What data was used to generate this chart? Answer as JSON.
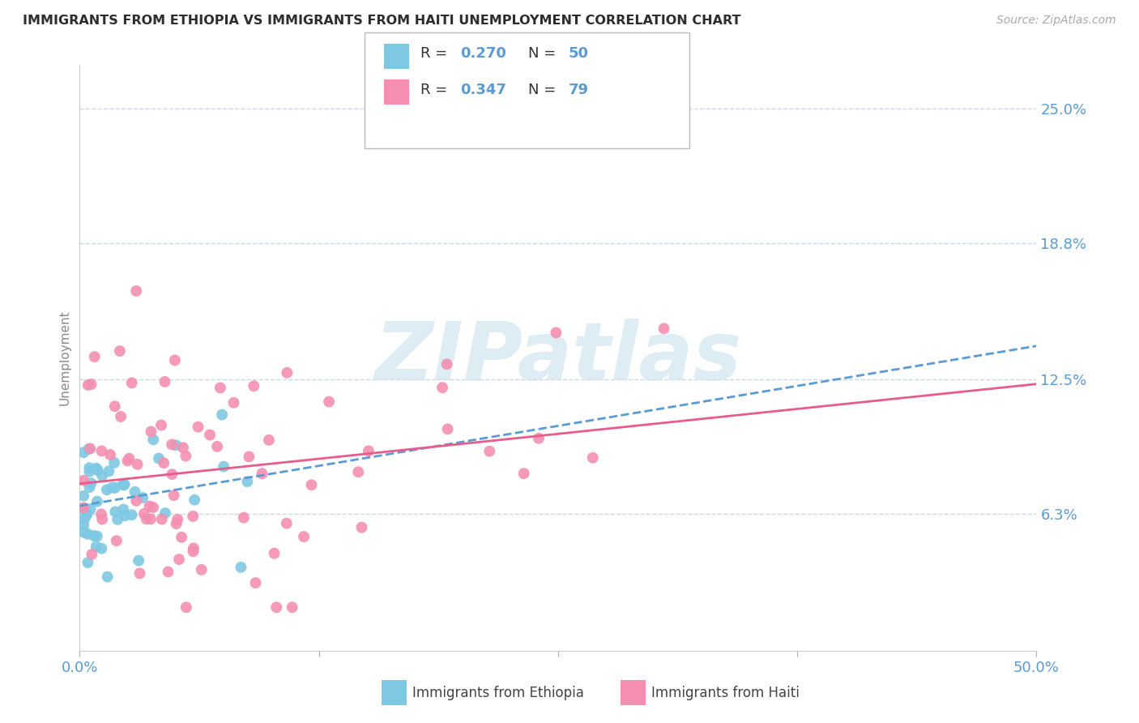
{
  "title": "IMMIGRANTS FROM ETHIOPIA VS IMMIGRANTS FROM HAITI UNEMPLOYMENT CORRELATION CHART",
  "source_text": "Source: ZipAtlas.com",
  "ylabel": "Unemployment",
  "x_min": 0.0,
  "x_max": 50.0,
  "y_min": 0.0,
  "y_max": 27.0,
  "ytick_values": [
    6.3,
    12.5,
    18.8,
    25.0
  ],
  "ytick_labels": [
    "6.3%",
    "12.5%",
    "18.8%",
    "25.0%"
  ],
  "ethiopia_color": "#7ec8e3",
  "ethiopia_line_color": "#5b9bd5",
  "haiti_color": "#f48fb1",
  "haiti_line_color": "#e85c8a",
  "ethiopia_R": 0.27,
  "ethiopia_N": 50,
  "haiti_R": 0.347,
  "haiti_N": 79,
  "legend_ethiopia": "Immigrants from Ethiopia",
  "legend_haiti": "Immigrants from Haiti",
  "title_color": "#2c2c2c",
  "axis_color": "#5b9bd5",
  "watermark_color": "#d0e4f0",
  "background_color": "#ffffff",
  "grid_color": "#c8daea",
  "ethiopia_seed": 42,
  "haiti_seed": 7
}
